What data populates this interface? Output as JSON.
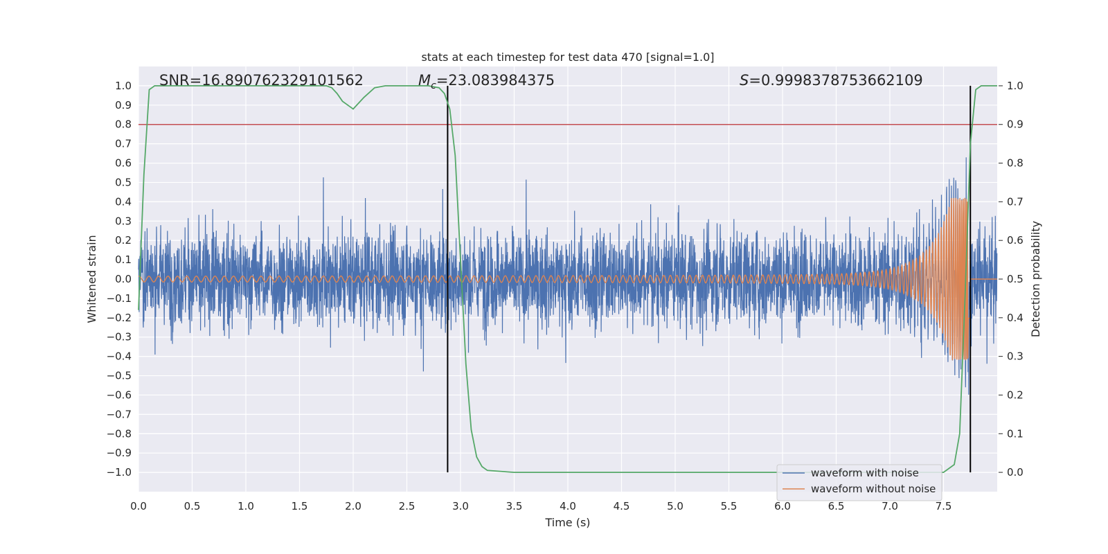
{
  "chart_data": {
    "type": "line",
    "title": "stats at each timestep for test data 470 [signal=1.0]",
    "xlabel": "Time (s)",
    "ylabel": "Whitened strain",
    "y2label": "Detection probability",
    "xlim": [
      0.0,
      8.0
    ],
    "ylim": [
      -1.1,
      1.1
    ],
    "y2lim": [
      -0.05,
      1.05
    ],
    "xticks": [
      0.0,
      0.5,
      1.0,
      1.5,
      2.0,
      2.5,
      3.0,
      3.5,
      4.0,
      4.5,
      5.0,
      5.5,
      6.0,
      6.5,
      7.0,
      7.5
    ],
    "xtick_labels": [
      "0.0",
      "0.5",
      "1.0",
      "1.5",
      "2.0",
      "2.5",
      "3.0",
      "3.5",
      "4.0",
      "4.5",
      "5.0",
      "5.5",
      "6.0",
      "6.5",
      "7.0",
      "7.5"
    ],
    "yticks": [
      -1.0,
      -0.9,
      -0.8,
      -0.7,
      -0.6,
      -0.5,
      -0.4,
      -0.3,
      -0.2,
      -0.1,
      0.0,
      0.1,
      0.2,
      0.3,
      0.4,
      0.5,
      0.6,
      0.7,
      0.8,
      0.9,
      1.0
    ],
    "ytick_labels": [
      "−1.0",
      "−0.9",
      "−0.8",
      "−0.7",
      "−0.6",
      "−0.5",
      "−0.4",
      "−0.3",
      "−0.2",
      "−0.1",
      "0.0",
      "0.1",
      "0.2",
      "0.3",
      "0.4",
      "0.5",
      "0.6",
      "0.7",
      "0.8",
      "0.9",
      "1.0"
    ],
    "y2ticks": [
      0.0,
      0.1,
      0.2,
      0.3,
      0.4,
      0.5,
      0.6,
      0.7,
      0.8,
      0.9,
      1.0
    ],
    "y2tick_labels": [
      "0.0",
      "0.1",
      "0.2",
      "0.3",
      "0.4",
      "0.5",
      "0.6",
      "0.7",
      "0.8",
      "0.9",
      "1.0"
    ],
    "annotations": {
      "snr": "SNR=16.890762329101562",
      "mc_symbol": "M",
      "mc_sub": "c",
      "mc_value": "=23.083984375",
      "s_symbol": "S",
      "s_value": "=0.9998378753662109"
    },
    "legend": {
      "location": "lower-right",
      "entries": [
        "waveform with noise",
        "waveform without noise"
      ]
    },
    "series": [
      {
        "name": "waveform with noise",
        "color": "#4c72b0",
        "axis": "left",
        "description": "noisy whitened strain, approx amplitude ±0.5 with peaks to ±0.7"
      },
      {
        "name": "waveform without noise",
        "color": "#dd8452",
        "axis": "left",
        "description": "chirp: amplitude ~0.01 at t=0 rising to ~0.4 near t=7.75"
      },
      {
        "name": "detection probability",
        "color": "#55a868",
        "axis": "right",
        "x": [
          0.0,
          0.05,
          0.1,
          0.15,
          0.2,
          0.3,
          0.5,
          1.0,
          1.5,
          1.75,
          1.8,
          1.85,
          1.9,
          2.0,
          2.1,
          2.2,
          2.3,
          2.5,
          2.7,
          2.8,
          2.85,
          2.9,
          2.95,
          3.0,
          3.05,
          3.1,
          3.15,
          3.2,
          3.25,
          3.5,
          4.0,
          5.0,
          6.0,
          7.0,
          7.5,
          7.6,
          7.65,
          7.7,
          7.75,
          7.8,
          7.85,
          7.9,
          8.0
        ],
        "values": [
          0.42,
          0.77,
          0.99,
          1.0,
          1.0,
          1.0,
          1.0,
          1.0,
          1.0,
          1.0,
          0.995,
          0.98,
          0.96,
          0.94,
          0.97,
          0.995,
          1.0,
          1.0,
          1.0,
          0.995,
          0.98,
          0.94,
          0.82,
          0.55,
          0.28,
          0.11,
          0.04,
          0.015,
          0.005,
          0.0,
          0.0,
          0.0,
          0.0,
          0.0,
          0.0,
          0.02,
          0.1,
          0.45,
          0.85,
          0.99,
          1.0,
          1.0,
          1.0
        ]
      }
    ],
    "threshold_line": {
      "value": 0.9,
      "axis": "right",
      "color": "#c44e52"
    },
    "vertical_lines": [
      2.88,
      7.75
    ]
  }
}
